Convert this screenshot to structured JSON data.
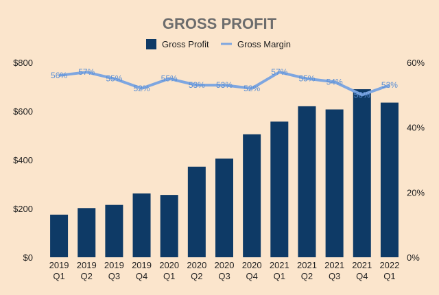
{
  "chart_data": {
    "type": "bar",
    "title": "GROSS PROFIT",
    "categories": [
      [
        "2019",
        "Q1"
      ],
      [
        "2019",
        "Q2"
      ],
      [
        "2019",
        "Q3"
      ],
      [
        "2019",
        "Q4"
      ],
      [
        "2020",
        "Q1"
      ],
      [
        "2020",
        "Q2"
      ],
      [
        "2020",
        "Q3"
      ],
      [
        "2020",
        "Q4"
      ],
      [
        "2021",
        "Q1"
      ],
      [
        "2021",
        "Q2"
      ],
      [
        "2021",
        "Q3"
      ],
      [
        "2021",
        "Q4"
      ],
      [
        "2022",
        "Q1"
      ]
    ],
    "series": [
      {
        "name": "Gross Profit",
        "type": "bar",
        "axis": "left",
        "color": "#0e3a66",
        "values": [
          175,
          202,
          215,
          262,
          256,
          372,
          405,
          505,
          557,
          620,
          607,
          690,
          635
        ]
      },
      {
        "name": "Gross Margin",
        "type": "line",
        "axis": "right",
        "color": "#7ea6e0",
        "values": [
          56,
          57,
          55,
          52,
          55,
          53,
          53,
          52,
          57,
          55,
          54,
          50,
          53
        ],
        "labels": [
          "56%",
          "57%",
          "55%",
          "52%",
          "55%",
          "53%",
          "53%",
          "52%",
          "57%",
          "55%",
          "54%",
          "50%",
          "53%"
        ]
      }
    ],
    "y_left": {
      "min": 0,
      "max": 800,
      "ticks": [
        "$0",
        "$200",
        "$400",
        "$600",
        "$800"
      ]
    },
    "y_right": {
      "min": 0,
      "max": 60,
      "ticks": [
        "0%",
        "20%",
        "40%",
        "60%"
      ]
    },
    "grid": false,
    "legend": "top-center"
  }
}
